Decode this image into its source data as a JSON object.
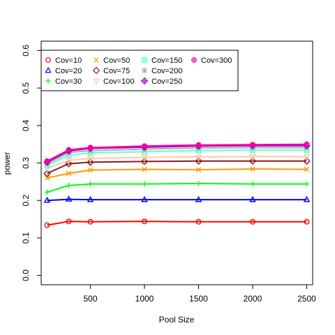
{
  "chart_data": {
    "type": "line",
    "title": "",
    "xlabel": "Pool Size",
    "ylabel": "power",
    "xlim": [
      45,
      2555
    ],
    "ylim": [
      -0.025,
      0.625
    ],
    "x_ticks": [
      500,
      1000,
      1500,
      2000,
      2500
    ],
    "y_ticks": [
      0.0,
      0.1,
      0.2,
      0.3,
      0.4,
      0.5,
      0.6
    ],
    "x_tick_labels": [
      "500",
      "1000",
      "1500",
      "2000",
      "2500"
    ],
    "y_tick_labels": [
      "0.0",
      "0.1",
      "0.2",
      "0.3",
      "0.4",
      "0.5",
      "0.6"
    ],
    "grid": false,
    "legend_position": "top-left",
    "x": [
      100,
      300,
      500,
      1000,
      1500,
      2000,
      2500
    ],
    "series": [
      {
        "name": "Cov=10",
        "color": "#ff0000",
        "marker": "circle",
        "values": [
          0.134,
          0.144,
          0.143,
          0.144,
          0.143,
          0.143,
          0.143
        ]
      },
      {
        "name": "Cov=20",
        "color": "#0000ff",
        "marker": "triangle",
        "values": [
          0.2,
          0.203,
          0.202,
          0.202,
          0.202,
          0.202,
          0.202
        ]
      },
      {
        "name": "Cov=30",
        "color": "#00ff00",
        "marker": "plus",
        "values": [
          0.222,
          0.24,
          0.244,
          0.244,
          0.245,
          0.244,
          0.244
        ]
      },
      {
        "name": "Cov=50",
        "color": "#ff9900",
        "marker": "x",
        "values": [
          0.26,
          0.272,
          0.281,
          0.283,
          0.282,
          0.284,
          0.283
        ]
      },
      {
        "name": "Cov=75",
        "color": "#8b1a1a",
        "marker": "diamond",
        "values": [
          0.272,
          0.298,
          0.302,
          0.304,
          0.305,
          0.305,
          0.305
        ]
      },
      {
        "name": "Cov=100",
        "color": "#ffc8a8",
        "marker": "triangle-down",
        "values": [
          0.286,
          0.307,
          0.312,
          0.315,
          0.316,
          0.317,
          0.317
        ]
      },
      {
        "name": "Cov=150",
        "color": "#66ffcc",
        "marker": "square-x",
        "values": [
          0.293,
          0.321,
          0.327,
          0.33,
          0.333,
          0.334,
          0.334
        ]
      },
      {
        "name": "Cov=200",
        "color": "#aaaaaa",
        "marker": "asterisk",
        "values": [
          0.298,
          0.328,
          0.333,
          0.337,
          0.34,
          0.341,
          0.341
        ]
      },
      {
        "name": "Cov=250",
        "color": "#9900cc",
        "marker": "diamond-plus",
        "values": [
          0.302,
          0.332,
          0.339,
          0.342,
          0.345,
          0.346,
          0.346
        ]
      },
      {
        "name": "Cov=300",
        "color": "#ff0099",
        "marker": "circle-plus",
        "values": [
          0.305,
          0.335,
          0.341,
          0.345,
          0.348,
          0.349,
          0.35
        ]
      }
    ]
  }
}
